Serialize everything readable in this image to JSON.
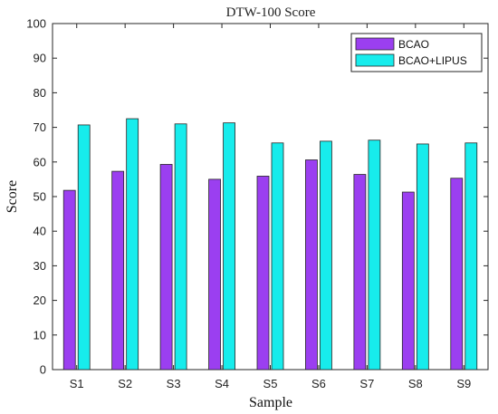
{
  "chart_data": {
    "type": "bar",
    "title": "DTW-100 Score",
    "xlabel": "Sample",
    "ylabel": "Score",
    "categories": [
      "S1",
      "S2",
      "S3",
      "S4",
      "S5",
      "S6",
      "S7",
      "S8",
      "S9"
    ],
    "series": [
      {
        "name": "BCAO",
        "values": [
          51.8,
          57.3,
          59.3,
          55.0,
          55.9,
          60.6,
          56.4,
          51.3,
          55.3
        ],
        "color": "#9b3ff0"
      },
      {
        "name": "BCAO+LIPUS",
        "values": [
          70.7,
          72.5,
          71.0,
          71.3,
          65.5,
          66.0,
          66.3,
          65.2,
          65.5
        ],
        "color": "#17ecec"
      }
    ],
    "ylim": [
      0,
      100
    ],
    "yticks": [
      0,
      10,
      20,
      30,
      40,
      50,
      60,
      70,
      80,
      90,
      100
    ],
    "grid": false,
    "legend_position": "top-right"
  }
}
